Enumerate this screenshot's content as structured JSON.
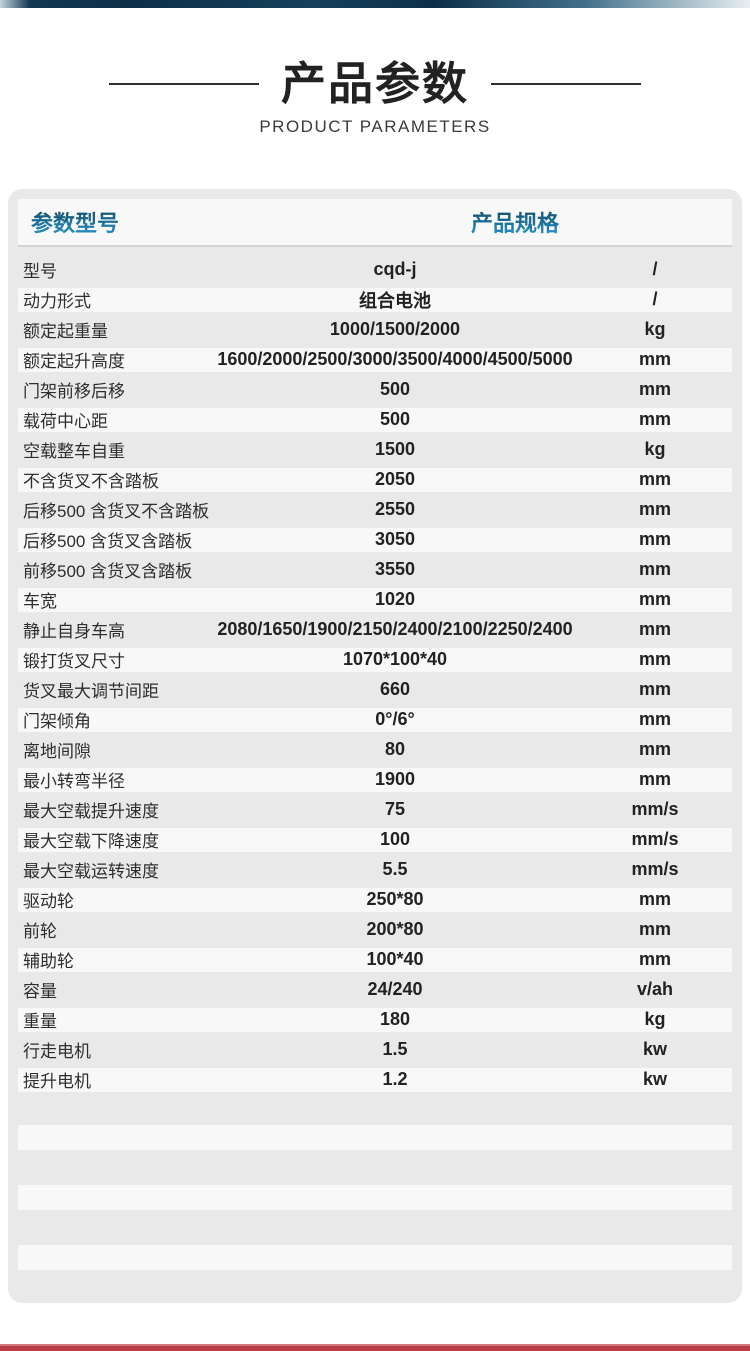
{
  "page": {
    "title": "产品参数",
    "subtitle": "PRODUCT PARAMETERS"
  },
  "table": {
    "header": {
      "col_param": "参数型号",
      "col_spec": "产品规格"
    },
    "rows": [
      {
        "label": "型号",
        "value": "cqd-j",
        "unit": "/"
      },
      {
        "label": "动力形式",
        "value": "组合电池",
        "unit": "/"
      },
      {
        "label": "额定起重量",
        "value": "1000/1500/2000",
        "unit": "kg"
      },
      {
        "label": "额定起升高度",
        "value": "1600/2000/2500/3000/3500/4000/4500/5000",
        "unit": "mm"
      },
      {
        "label": "门架前移后移",
        "value": "500",
        "unit": "mm"
      },
      {
        "label": "载荷中心距",
        "value": "500",
        "unit": "mm"
      },
      {
        "label": "空载整车自重",
        "value": "1500",
        "unit": "kg"
      },
      {
        "label": "不含货叉不含踏板",
        "value": "2050",
        "unit": "mm"
      },
      {
        "label": "后移500 含货叉不含踏板",
        "value": "2550",
        "unit": "mm"
      },
      {
        "label": "后移500 含货叉含踏板",
        "value": "3050",
        "unit": "mm"
      },
      {
        "label": "前移500 含货叉含踏板",
        "value": "3550",
        "unit": "mm"
      },
      {
        "label": "车宽",
        "value": "1020",
        "unit": "mm"
      },
      {
        "label": "静止自身车高",
        "value": "2080/1650/1900/2150/2400/2100/2250/2400",
        "unit": "mm"
      },
      {
        "label": "锻打货叉尺寸",
        "value": "1070*100*40",
        "unit": "mm"
      },
      {
        "label": "货叉最大调节间距",
        "value": "660",
        "unit": "mm"
      },
      {
        "label": "门架倾角",
        "value": "0°/6°",
        "unit": "mm"
      },
      {
        "label": "离地间隙",
        "value": "80",
        "unit": "mm"
      },
      {
        "label": "最小转弯半径",
        "value": "1900",
        "unit": "mm"
      },
      {
        "label": "最大空载提升速度",
        "value": "75",
        "unit": "mm/s"
      },
      {
        "label": "最大空载下降速度",
        "value": "100",
        "unit": "mm/s"
      },
      {
        "label": "最大空载运转速度",
        "value": "5.5",
        "unit": "mm/s"
      },
      {
        "label": "驱动轮",
        "value": "250*80",
        "unit": "mm"
      },
      {
        "label": "前轮",
        "value": "200*80",
        "unit": "mm"
      },
      {
        "label": "辅助轮",
        "value": "100*40",
        "unit": "mm"
      },
      {
        "label": "容量",
        "value": "24/240",
        "unit": "v/ah"
      },
      {
        "label": "重量",
        "value": "180",
        "unit": "kg"
      },
      {
        "label": "行走电机",
        "value": "1.5",
        "unit": "kw"
      },
      {
        "label": "提升电机",
        "value": "1.2",
        "unit": "kw"
      }
    ]
  },
  "colors": {
    "top_bar_navy": "#0d3049",
    "header_blue_top": "#14516e",
    "header_blue_bottom": "#2596cc",
    "card_gray": "#e9e9e9",
    "row_light": "#f8f8f8",
    "bottom_bar_red": "#b93b46",
    "bottom_bar_red_light": "#d4747c"
  }
}
